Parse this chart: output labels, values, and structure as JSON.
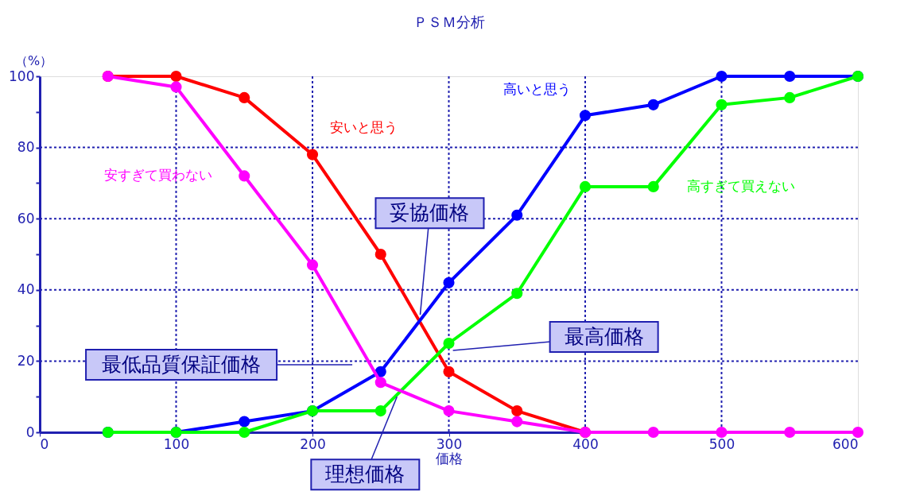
{
  "chart_data": {
    "type": "line",
    "title": "ＰＳＭ分析",
    "xlabel": "価格",
    "ylabel": "（%）",
    "x": [
      50,
      100,
      150,
      200,
      250,
      300,
      350,
      400,
      450,
      500,
      550,
      600
    ],
    "series": [
      {
        "name": "安いと思う",
        "color": "#ff0000",
        "values": [
          100,
          100,
          94,
          78,
          50,
          17,
          6,
          0,
          null,
          null,
          null,
          null
        ]
      },
      {
        "name": "高いと思う",
        "color": "#0000ff",
        "values": [
          0,
          0,
          3,
          6,
          17,
          42,
          61,
          89,
          92,
          100,
          100,
          100
        ]
      },
      {
        "name": "高すぎて買えない",
        "color": "#00ff00",
        "values": [
          0,
          0,
          0,
          6,
          6,
          25,
          39,
          69,
          69,
          92,
          94,
          100
        ]
      },
      {
        "name": "安すぎて買わない",
        "color": "#ff00ff",
        "values": [
          100,
          97,
          72,
          47,
          14,
          6,
          3,
          0,
          0,
          0,
          0,
          0
        ]
      }
    ],
    "xlim": [
      0,
      600
    ],
    "xticks": [
      0,
      100,
      200,
      300,
      400,
      500,
      600
    ],
    "ylim": [
      0,
      100
    ],
    "yticks": [
      0,
      {
        "value": 10,
        "label": null
      },
      20,
      {
        "value": 30,
        "label": null
      },
      40,
      {
        "value": 50,
        "label": null
      },
      60,
      {
        "value": 70,
        "label": null
      },
      80,
      {
        "value": 90,
        "label": null
      },
      100
    ],
    "grid": true,
    "legend": false,
    "marker": "circle",
    "line_style": "solid",
    "annotations": [
      {
        "text": "妥協価格",
        "x": 279,
        "y": 33
      },
      {
        "text": "最高価格",
        "x": 303,
        "y": 23
      },
      "最低品質保証価格",
      {
        "text": "理想価格",
        "x": 262,
        "y": 10
      }
    ]
  }
}
